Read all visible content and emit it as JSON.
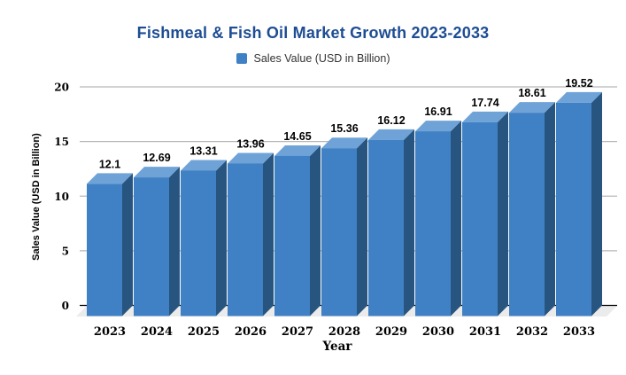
{
  "chart_data": {
    "type": "bar",
    "style": "3d-column",
    "title": "Fishmeal & Fish Oil Market Growth 2023-2033",
    "legend": [
      {
        "label": "Sales Value (USD in Billion)"
      }
    ],
    "legend_position": "top-center",
    "categories": [
      "2023",
      "2024",
      "2025",
      "2026",
      "2027",
      "2028",
      "2029",
      "2030",
      "2031",
      "2032",
      "2033"
    ],
    "values": [
      12.1,
      12.69,
      13.31,
      13.96,
      14.65,
      15.36,
      16.12,
      16.91,
      17.74,
      18.61,
      19.52
    ],
    "value_labels": [
      "12.1",
      "12.69",
      "13.31",
      "13.96",
      "14.65",
      "15.36",
      "16.12",
      "16.91",
      "17.74",
      "18.61",
      "19.52"
    ],
    "xlabel": "Year",
    "ylabel": "Sales Value (USD in Billion)",
    "ylim": [
      0,
      20
    ],
    "yticks": [
      0,
      5,
      10,
      15,
      20
    ],
    "grid": true,
    "colors": {
      "title": "#1E4D94",
      "bar_front": "#3F81C4",
      "bar_top": "#6FA3D7",
      "bar_side": "#28557F",
      "legend_swatch": "#3F81C4",
      "legend_text": "#333333",
      "gridline": "#B7B7B7",
      "axis_line": "#000000",
      "floor": "#EBEBEB",
      "tick_text": "#000000",
      "data_label_text": "#000000"
    }
  }
}
